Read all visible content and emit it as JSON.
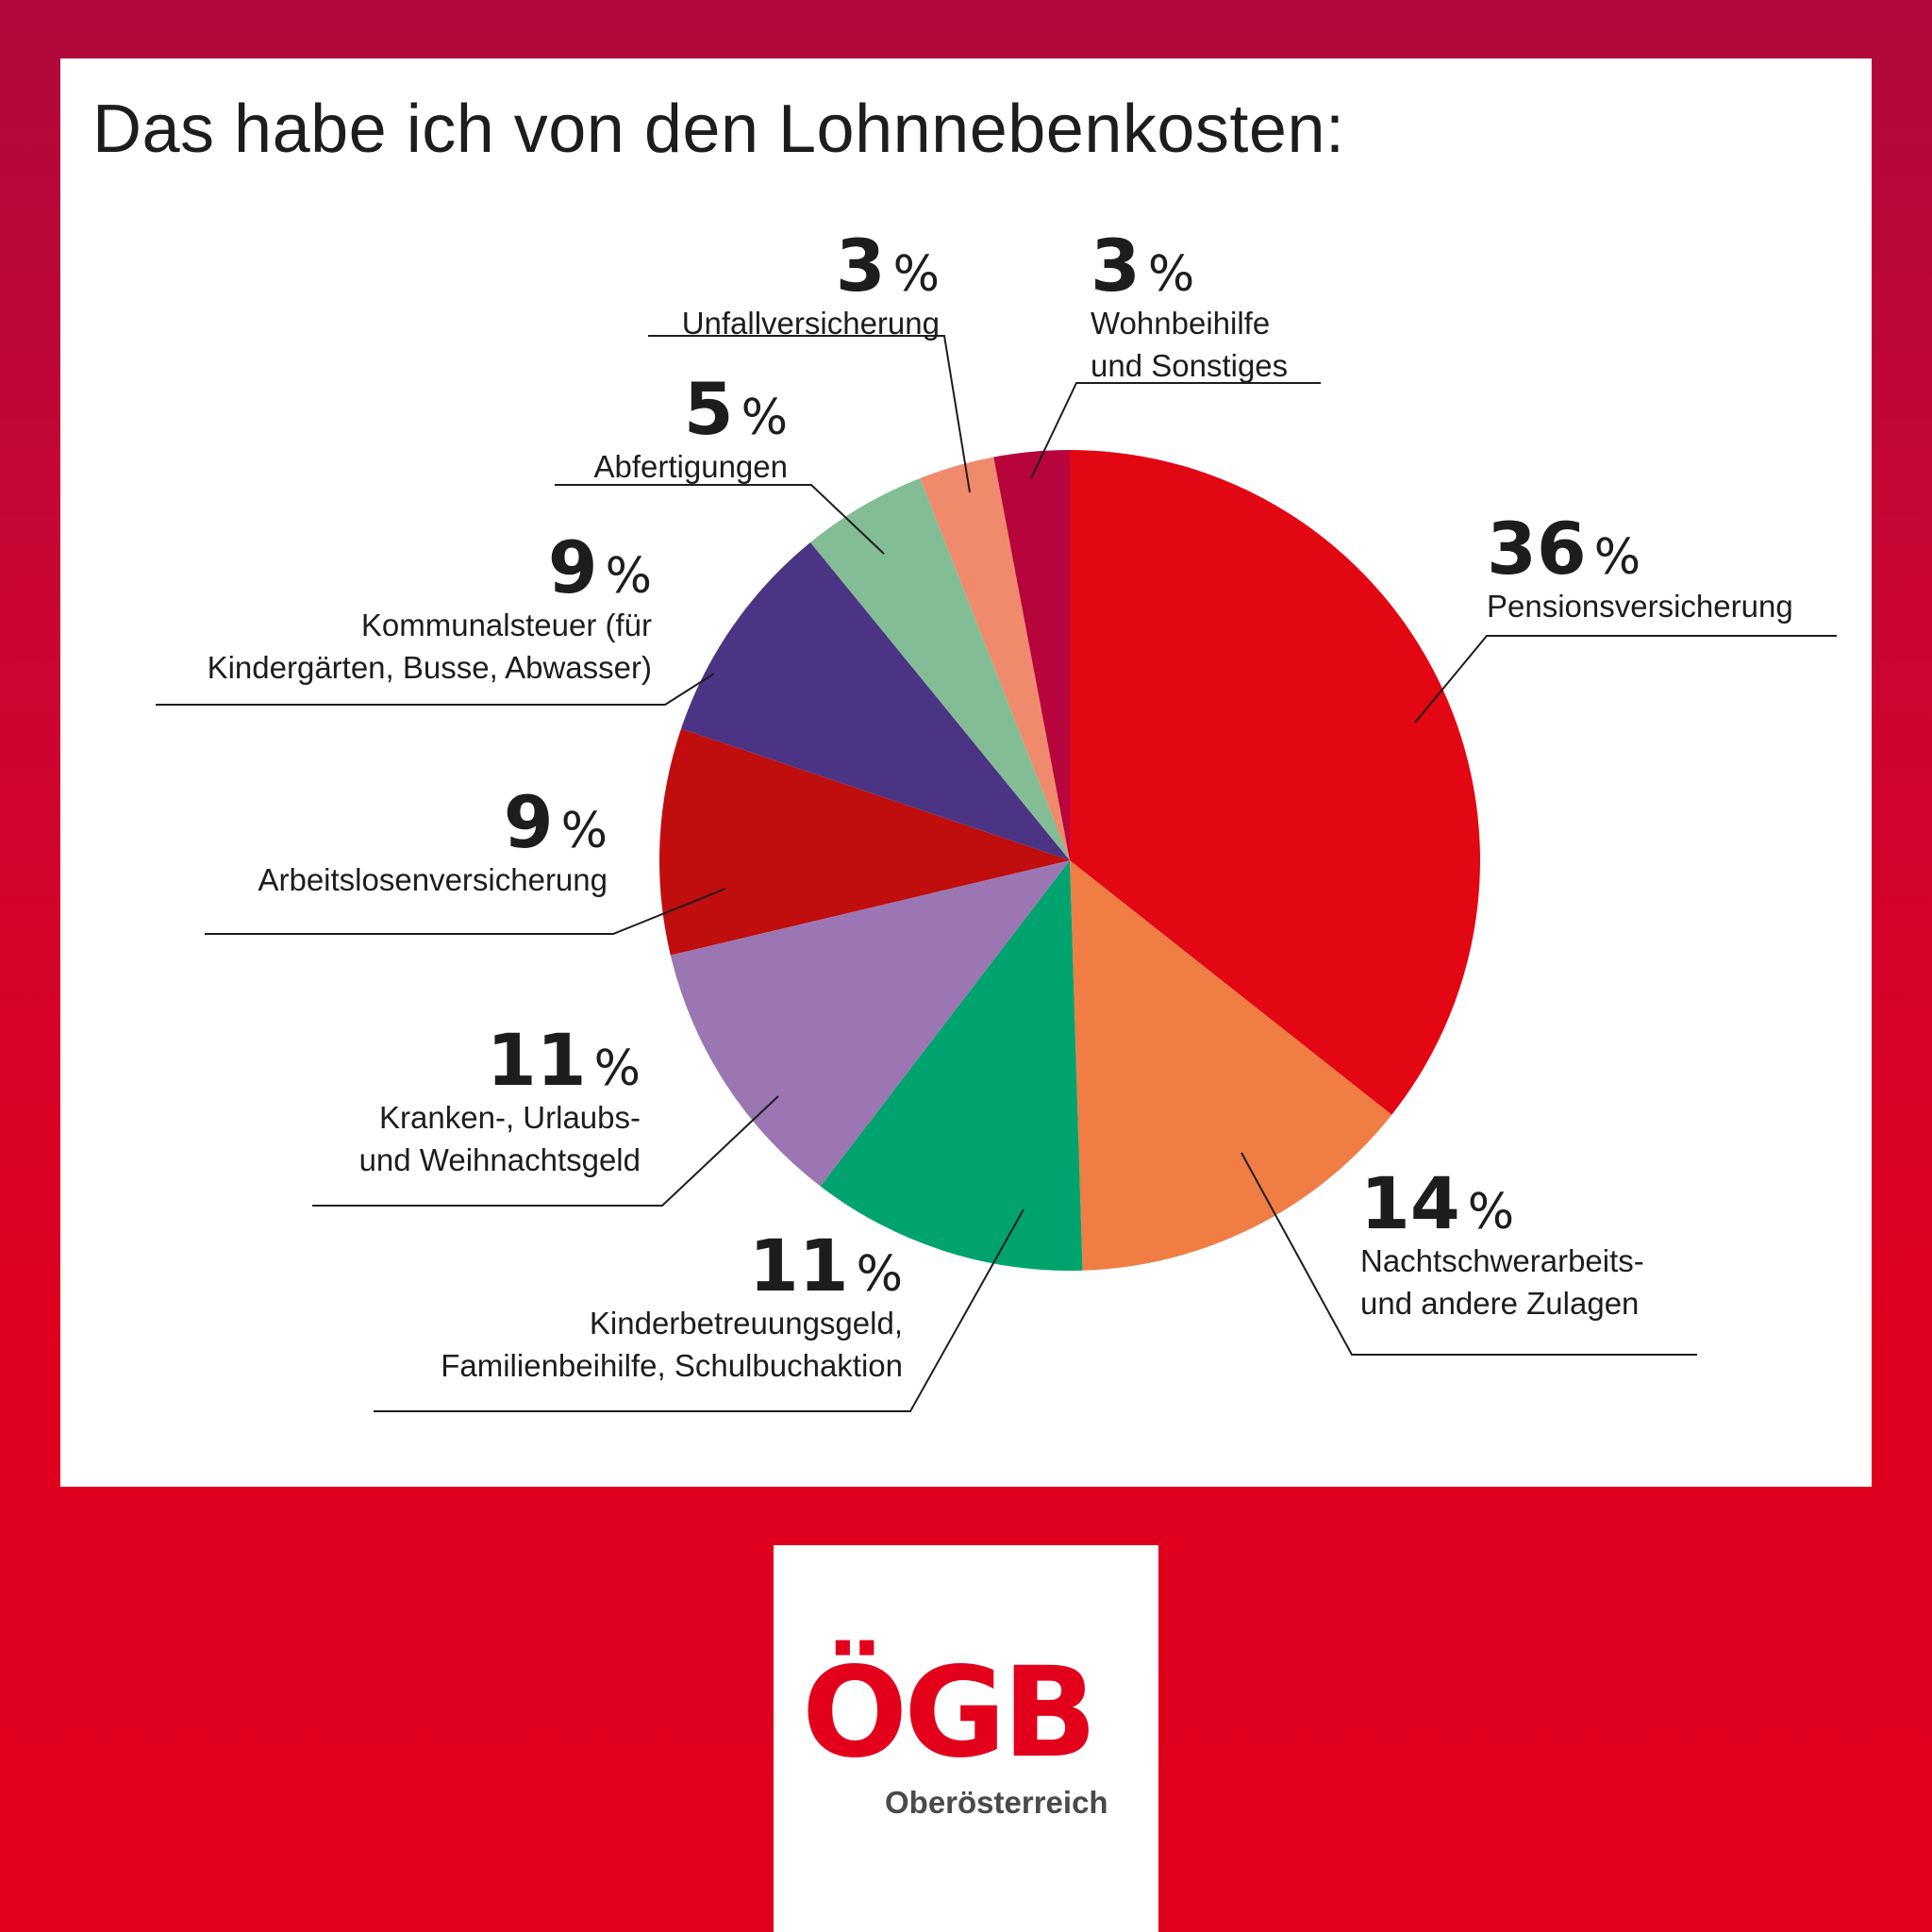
{
  "title": "Das habe ich von den Lohnnebenkosten:",
  "chart_data": {
    "type": "pie",
    "title": "Das habe ich von den Lohnnebenkosten:",
    "slices": [
      {
        "value": 36,
        "label_lines": [
          "Pensionsversicherung"
        ],
        "color": "#e30613"
      },
      {
        "value": 14,
        "label_lines": [
          "Nachtschwerarbeits-",
          "und andere Zulagen"
        ],
        "color": "#ef7d44"
      },
      {
        "value": 11,
        "label_lines": [
          "Kinderbetreuungsgeld,",
          "Familienbeihilfe, Schulbuchaktion"
        ],
        "color": "#00a36e"
      },
      {
        "value": 11,
        "label_lines": [
          "Kranken-, Urlaubs-",
          "und Weihnachtsgeld"
        ],
        "color": "#9b76b2"
      },
      {
        "value": 9,
        "label_lines": [
          "Arbeitslosenversicherung"
        ],
        "color": "#c00d0e"
      },
      {
        "value": 9,
        "label_lines": [
          "Kommunalsteuer (für",
          "Kindergärten, Busse, Abwasser)"
        ],
        "color": "#4b3483"
      },
      {
        "value": 5,
        "label_lines": [
          "Abfertigungen"
        ],
        "color": "#82bd95"
      },
      {
        "value": 3,
        "label_lines": [
          "Unfallversicherung"
        ],
        "color": "#f08a6c"
      },
      {
        "value": 3,
        "label_lines": [
          "Wohnbeihilfe",
          "und Sonstiges"
        ],
        "color": "#b7043d"
      }
    ],
    "unit": "%"
  },
  "logo": {
    "name": "ÖGB",
    "region": "Oberösterreich",
    "color": "#e3001b"
  }
}
